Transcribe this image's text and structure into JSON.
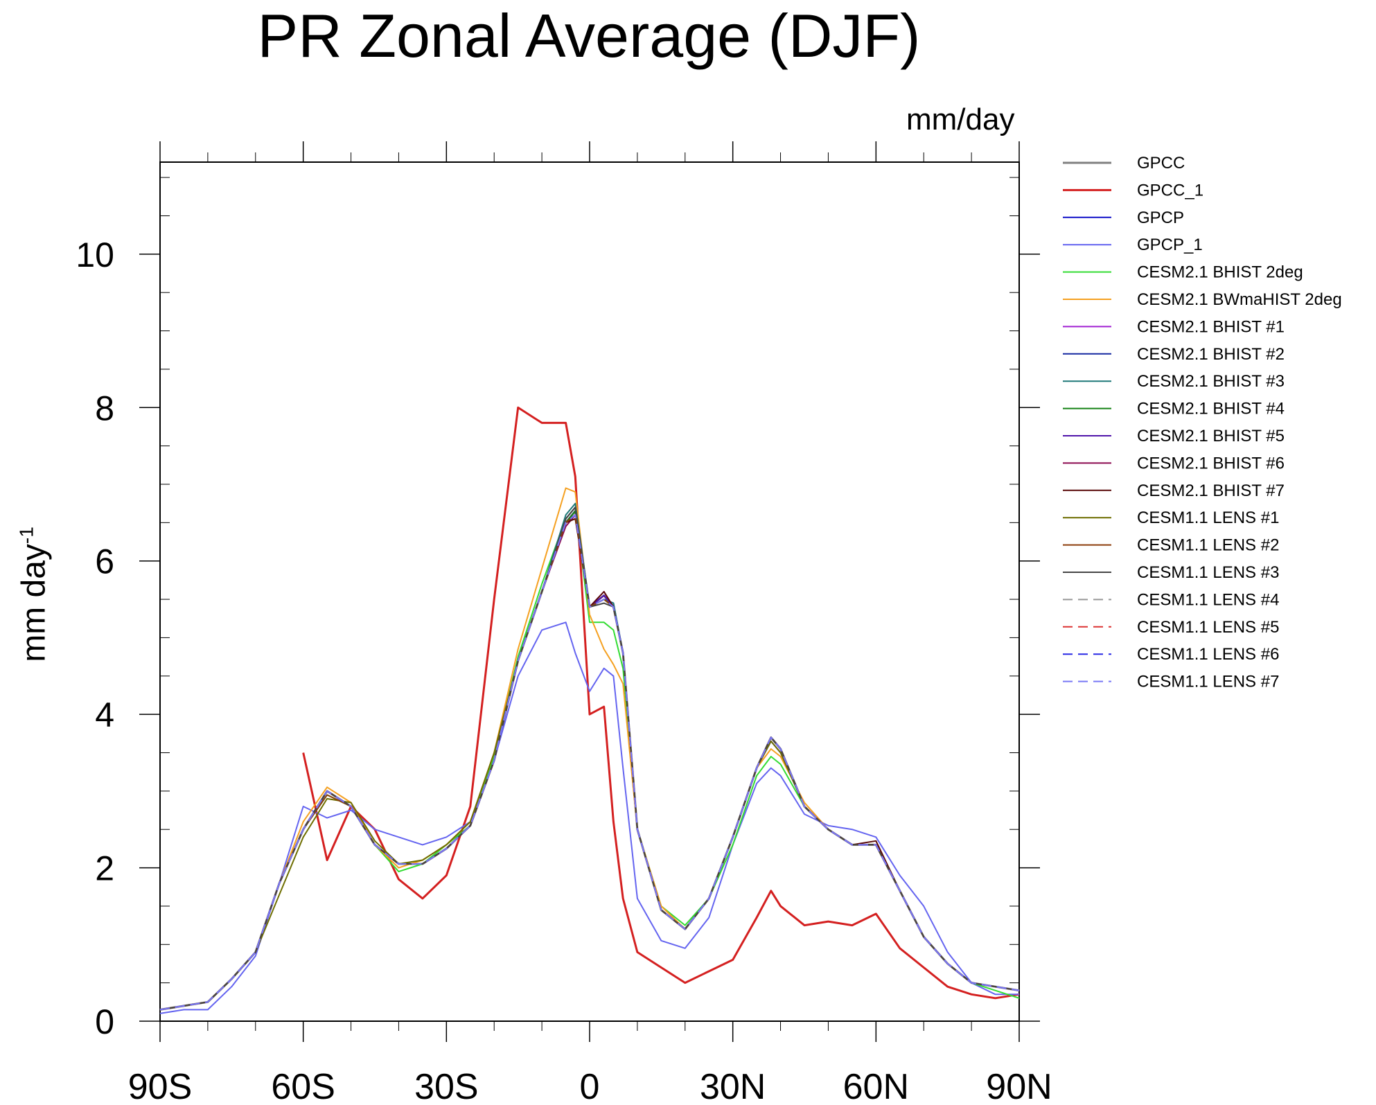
{
  "chart_data": {
    "type": "line",
    "title": "PR Zonal Average (DJF)",
    "units_label": "mm/day",
    "ylabel": "mm day",
    "ylabel_exponent": "-1",
    "xlabel": "",
    "xlim": [
      -90,
      90
    ],
    "ylim": [
      0,
      11.2
    ],
    "x_ticks": [
      {
        "value": -90,
        "label": "90S"
      },
      {
        "value": -60,
        "label": "60S"
      },
      {
        "value": -30,
        "label": "30S"
      },
      {
        "value": 0,
        "label": "0"
      },
      {
        "value": 30,
        "label": "30N"
      },
      {
        "value": 60,
        "label": "60N"
      },
      {
        "value": 90,
        "label": "90N"
      }
    ],
    "y_ticks": [
      {
        "value": 0,
        "label": "0"
      },
      {
        "value": 2,
        "label": "2"
      },
      {
        "value": 4,
        "label": "4"
      },
      {
        "value": 6,
        "label": "6"
      },
      {
        "value": 8,
        "label": "8"
      },
      {
        "value": 10,
        "label": "10"
      }
    ],
    "grid": false,
    "legend_position": "right",
    "x": [
      -90,
      -85,
      -80,
      -75,
      -70,
      -65,
      -60,
      -55,
      -50,
      -45,
      -40,
      -35,
      -30,
      -25,
      -20,
      -15,
      -10,
      -5,
      -3,
      0,
      3,
      5,
      7,
      10,
      15,
      20,
      25,
      30,
      35,
      38,
      40,
      45,
      50,
      55,
      60,
      65,
      70,
      75,
      80,
      85,
      90
    ],
    "series": [
      {
        "name": "GPCC",
        "color": "#808080",
        "width": 3,
        "dash": "",
        "values": [
          0.15,
          0.2,
          0.25,
          0.55,
          0.9,
          1.8,
          2.5,
          3.0,
          2.8,
          2.3,
          2.05,
          2.05,
          2.25,
          2.55,
          3.4,
          4.7,
          5.6,
          6.5,
          6.65,
          5.4,
          5.55,
          5.4,
          4.8,
          2.5,
          1.45,
          1.2,
          1.6,
          2.4,
          3.3,
          3.7,
          3.55,
          2.8,
          2.5,
          2.3,
          2.3,
          1.7,
          1.1,
          0.75,
          0.5,
          0.45,
          0.4
        ]
      },
      {
        "name": "GPCC_1",
        "color": "#d42020",
        "width": 3,
        "dash": "",
        "values": [
          null,
          null,
          null,
          null,
          null,
          null,
          3.5,
          2.1,
          2.8,
          2.5,
          1.85,
          1.6,
          1.9,
          2.8,
          5.5,
          8.0,
          7.8,
          7.8,
          7.1,
          4.0,
          4.1,
          2.6,
          1.6,
          0.9,
          0.7,
          0.5,
          0.65,
          0.8,
          1.35,
          1.7,
          1.5,
          1.25,
          1.3,
          1.25,
          1.4,
          0.95,
          0.7,
          0.45,
          0.35,
          0.3,
          0.35
        ]
      },
      {
        "name": "GPCP",
        "color": "#1414c8",
        "width": 2,
        "dash": "",
        "values": [
          0.15,
          0.2,
          0.25,
          0.55,
          0.9,
          1.8,
          2.5,
          3.0,
          2.8,
          2.3,
          2.05,
          2.05,
          2.25,
          2.55,
          3.4,
          4.7,
          5.6,
          6.5,
          6.65,
          5.4,
          5.55,
          5.4,
          4.8,
          2.5,
          1.45,
          1.2,
          1.6,
          2.4,
          3.3,
          3.65,
          3.5,
          2.8,
          2.5,
          2.3,
          2.3,
          1.7,
          1.1,
          0.75,
          0.5,
          0.45,
          0.4
        ]
      },
      {
        "name": "GPCP_1",
        "color": "#6464f0",
        "width": 2,
        "dash": "",
        "values": [
          0.1,
          0.15,
          0.15,
          0.45,
          0.85,
          1.8,
          2.8,
          2.65,
          2.75,
          2.5,
          2.4,
          2.3,
          2.4,
          2.6,
          3.4,
          4.5,
          5.1,
          5.2,
          4.8,
          4.3,
          4.6,
          4.5,
          3.3,
          1.6,
          1.05,
          0.95,
          1.35,
          2.3,
          3.1,
          3.3,
          3.2,
          2.7,
          2.55,
          2.5,
          2.4,
          1.9,
          1.5,
          0.9,
          0.5,
          0.35,
          0.35
        ]
      },
      {
        "name": "CESM2.1 BHIST 2deg",
        "color": "#32dc32",
        "width": 2,
        "dash": "",
        "values": [
          0.15,
          0.2,
          0.25,
          0.55,
          0.9,
          1.8,
          2.5,
          2.95,
          2.8,
          2.3,
          1.95,
          2.05,
          2.3,
          2.55,
          3.45,
          4.75,
          5.7,
          6.55,
          6.7,
          5.2,
          5.2,
          5.1,
          4.6,
          2.5,
          1.5,
          1.25,
          1.6,
          2.3,
          3.2,
          3.45,
          3.35,
          2.8,
          2.5,
          2.3,
          2.3,
          1.7,
          1.1,
          0.75,
          0.5,
          0.4,
          0.3
        ]
      },
      {
        "name": "CESM2.1 BWmaHIST 2deg",
        "color": "#f5a020",
        "width": 2,
        "dash": "",
        "values": [
          0.15,
          0.2,
          0.25,
          0.55,
          0.9,
          1.8,
          2.6,
          3.05,
          2.85,
          2.3,
          2.0,
          2.1,
          2.3,
          2.6,
          3.5,
          4.85,
          5.9,
          6.95,
          6.9,
          5.3,
          4.85,
          4.65,
          4.4,
          2.5,
          1.5,
          1.2,
          1.6,
          2.4,
          3.3,
          3.55,
          3.45,
          2.85,
          2.5,
          2.3,
          2.3,
          1.7,
          1.1,
          0.75,
          0.5,
          0.45,
          0.4
        ]
      },
      {
        "name": "CESM2.1 BHIST #1",
        "color": "#a020d2",
        "width": 2,
        "dash": "",
        "values": [
          0.15,
          0.2,
          0.25,
          0.55,
          0.9,
          1.8,
          2.5,
          3.0,
          2.8,
          2.3,
          2.05,
          2.05,
          2.25,
          2.55,
          3.4,
          4.7,
          5.6,
          6.5,
          6.6,
          5.4,
          5.55,
          5.4,
          4.8,
          2.5,
          1.45,
          1.2,
          1.6,
          2.4,
          3.3,
          3.7,
          3.55,
          2.8,
          2.5,
          2.3,
          2.3,
          1.7,
          1.1,
          0.75,
          0.5,
          0.45,
          0.4
        ]
      },
      {
        "name": "CESM2.1 BHIST #2",
        "color": "#1428a0",
        "width": 2,
        "dash": "",
        "values": [
          0.15,
          0.2,
          0.25,
          0.55,
          0.9,
          1.8,
          2.5,
          3.0,
          2.8,
          2.3,
          2.05,
          2.05,
          2.25,
          2.55,
          3.4,
          4.7,
          5.6,
          6.55,
          6.7,
          5.4,
          5.5,
          5.45,
          4.8,
          2.5,
          1.45,
          1.2,
          1.6,
          2.4,
          3.3,
          3.7,
          3.55,
          2.8,
          2.5,
          2.3,
          2.3,
          1.7,
          1.1,
          0.75,
          0.5,
          0.45,
          0.4
        ]
      },
      {
        "name": "CESM2.1 BHIST #3",
        "color": "#1e7878",
        "width": 2,
        "dash": "",
        "values": [
          0.15,
          0.2,
          0.25,
          0.55,
          0.9,
          1.8,
          2.5,
          3.0,
          2.8,
          2.3,
          2.05,
          2.05,
          2.25,
          2.55,
          3.4,
          4.7,
          5.6,
          6.6,
          6.75,
          5.4,
          5.5,
          5.45,
          4.8,
          2.5,
          1.45,
          1.2,
          1.6,
          2.4,
          3.3,
          3.7,
          3.55,
          2.8,
          2.5,
          2.3,
          2.3,
          1.7,
          1.1,
          0.75,
          0.5,
          0.45,
          0.4
        ]
      },
      {
        "name": "CESM2.1 BHIST #4",
        "color": "#148214",
        "width": 2,
        "dash": "",
        "values": [
          0.15,
          0.2,
          0.25,
          0.55,
          0.9,
          1.8,
          2.5,
          3.0,
          2.8,
          2.3,
          2.05,
          2.05,
          2.25,
          2.55,
          3.4,
          4.7,
          5.6,
          6.5,
          6.65,
          5.4,
          5.5,
          5.4,
          4.8,
          2.5,
          1.45,
          1.2,
          1.6,
          2.4,
          3.3,
          3.7,
          3.55,
          2.8,
          2.5,
          2.3,
          2.3,
          1.7,
          1.1,
          0.75,
          0.5,
          0.45,
          0.4
        ]
      },
      {
        "name": "CESM2.1 BHIST #5",
        "color": "#5014aa",
        "width": 2,
        "dash": "",
        "values": [
          0.15,
          0.2,
          0.25,
          0.55,
          0.9,
          1.8,
          2.5,
          3.0,
          2.8,
          2.3,
          2.05,
          2.05,
          2.25,
          2.55,
          3.4,
          4.7,
          5.6,
          6.5,
          6.6,
          5.4,
          5.55,
          5.4,
          4.8,
          2.5,
          1.45,
          1.2,
          1.6,
          2.4,
          3.3,
          3.7,
          3.55,
          2.8,
          2.5,
          2.3,
          2.3,
          1.7,
          1.1,
          0.75,
          0.5,
          0.45,
          0.4
        ]
      },
      {
        "name": "CESM2.1 BHIST #6",
        "color": "#8c0a50",
        "width": 2,
        "dash": "",
        "values": [
          0.15,
          0.2,
          0.25,
          0.55,
          0.9,
          1.8,
          2.5,
          3.0,
          2.8,
          2.3,
          2.05,
          2.05,
          2.25,
          2.55,
          3.4,
          4.7,
          5.6,
          6.45,
          6.6,
          5.4,
          5.6,
          5.4,
          4.8,
          2.5,
          1.45,
          1.2,
          1.6,
          2.4,
          3.3,
          3.7,
          3.55,
          2.8,
          2.5,
          2.3,
          2.3,
          1.7,
          1.1,
          0.75,
          0.5,
          0.45,
          0.4
        ]
      },
      {
        "name": "CESM2.1 BHIST #7",
        "color": "#5a0a0a",
        "width": 2,
        "dash": "",
        "values": [
          0.15,
          0.2,
          0.25,
          0.55,
          0.9,
          1.8,
          2.5,
          3.0,
          2.8,
          2.3,
          2.05,
          2.05,
          2.25,
          2.55,
          3.4,
          4.7,
          5.6,
          6.5,
          6.55,
          5.4,
          5.6,
          5.4,
          4.8,
          2.5,
          1.45,
          1.2,
          1.6,
          2.4,
          3.3,
          3.7,
          3.55,
          2.8,
          2.5,
          2.3,
          2.35,
          1.7,
          1.1,
          0.75,
          0.5,
          0.45,
          0.4
        ]
      },
      {
        "name": "CESM1.1 LENS #1",
        "color": "#6e6e00",
        "width": 2,
        "dash": "",
        "values": [
          0.15,
          0.2,
          0.25,
          0.55,
          0.9,
          1.65,
          2.4,
          2.9,
          2.85,
          2.35,
          2.05,
          2.1,
          2.3,
          2.6,
          3.5,
          4.7,
          5.6,
          6.5,
          6.6,
          5.4,
          5.5,
          5.4,
          4.8,
          2.5,
          1.45,
          1.2,
          1.6,
          2.4,
          3.3,
          3.65,
          3.5,
          2.8,
          2.5,
          2.3,
          2.3,
          1.7,
          1.1,
          0.75,
          0.5,
          0.45,
          0.4
        ]
      },
      {
        "name": "CESM1.1 LENS #2",
        "color": "#8c3c0a",
        "width": 2,
        "dash": "",
        "values": [
          0.15,
          0.2,
          0.25,
          0.55,
          0.9,
          1.8,
          2.5,
          2.95,
          2.8,
          2.3,
          2.05,
          2.05,
          2.25,
          2.55,
          3.4,
          4.7,
          5.6,
          6.5,
          6.6,
          5.4,
          5.5,
          5.4,
          4.8,
          2.5,
          1.45,
          1.2,
          1.6,
          2.4,
          3.3,
          3.7,
          3.55,
          2.8,
          2.5,
          2.3,
          2.3,
          1.7,
          1.1,
          0.75,
          0.5,
          0.45,
          0.4
        ]
      },
      {
        "name": "CESM1.1 LENS #3",
        "color": "#464646",
        "width": 2,
        "dash": "",
        "values": [
          0.15,
          0.2,
          0.25,
          0.55,
          0.9,
          1.8,
          2.5,
          3.0,
          2.8,
          2.3,
          2.05,
          2.05,
          2.25,
          2.55,
          3.4,
          4.7,
          5.6,
          6.55,
          6.7,
          5.4,
          5.45,
          5.4,
          4.8,
          2.5,
          1.45,
          1.2,
          1.6,
          2.4,
          3.3,
          3.7,
          3.55,
          2.8,
          2.5,
          2.3,
          2.3,
          1.7,
          1.1,
          0.75,
          0.5,
          0.45,
          0.4
        ]
      },
      {
        "name": "CESM1.1 LENS #4",
        "color": "#969696",
        "width": 2,
        "dash": "14 8",
        "values": [
          0.15,
          0.2,
          0.25,
          0.55,
          0.9,
          1.8,
          2.5,
          3.0,
          2.8,
          2.3,
          2.05,
          2.05,
          2.25,
          2.55,
          3.4,
          4.7,
          5.6,
          6.5,
          6.6,
          5.4,
          5.5,
          5.4,
          4.8,
          2.5,
          1.45,
          1.2,
          1.6,
          2.4,
          3.3,
          3.7,
          3.55,
          2.8,
          2.5,
          2.3,
          2.3,
          1.7,
          1.1,
          0.75,
          0.5,
          0.45,
          0.4
        ]
      },
      {
        "name": "CESM1.1 LENS #5",
        "color": "#dc3232",
        "width": 2,
        "dash": "14 8",
        "values": [
          0.15,
          0.2,
          0.25,
          0.55,
          0.9,
          1.8,
          2.5,
          3.0,
          2.8,
          2.3,
          2.05,
          2.05,
          2.25,
          2.55,
          3.4,
          4.7,
          5.6,
          6.5,
          6.6,
          5.4,
          5.5,
          5.4,
          4.8,
          2.5,
          1.45,
          1.2,
          1.6,
          2.4,
          3.3,
          3.7,
          3.55,
          2.8,
          2.5,
          2.3,
          2.3,
          1.7,
          1.1,
          0.75,
          0.5,
          0.45,
          0.4
        ]
      },
      {
        "name": "CESM1.1 LENS #6",
        "color": "#2828e6",
        "width": 2,
        "dash": "14 8",
        "values": [
          0.15,
          0.2,
          0.25,
          0.55,
          0.9,
          1.8,
          2.5,
          3.0,
          2.8,
          2.3,
          2.05,
          2.05,
          2.25,
          2.55,
          3.4,
          4.7,
          5.6,
          6.5,
          6.6,
          5.4,
          5.5,
          5.4,
          4.8,
          2.5,
          1.45,
          1.2,
          1.6,
          2.4,
          3.3,
          3.7,
          3.55,
          2.8,
          2.5,
          2.3,
          2.3,
          1.7,
          1.1,
          0.75,
          0.5,
          0.45,
          0.4
        ]
      },
      {
        "name": "CESM1.1 LENS #7",
        "color": "#7878f5",
        "width": 2,
        "dash": "14 8",
        "values": [
          0.15,
          0.2,
          0.25,
          0.55,
          0.9,
          1.8,
          2.5,
          3.0,
          2.8,
          2.3,
          2.05,
          2.05,
          2.25,
          2.55,
          3.4,
          4.7,
          5.6,
          6.5,
          6.6,
          5.4,
          5.5,
          5.4,
          4.8,
          2.5,
          1.45,
          1.2,
          1.6,
          2.4,
          3.3,
          3.7,
          3.55,
          2.8,
          2.5,
          2.3,
          2.3,
          1.7,
          1.1,
          0.75,
          0.5,
          0.45,
          0.4
        ]
      }
    ]
  }
}
